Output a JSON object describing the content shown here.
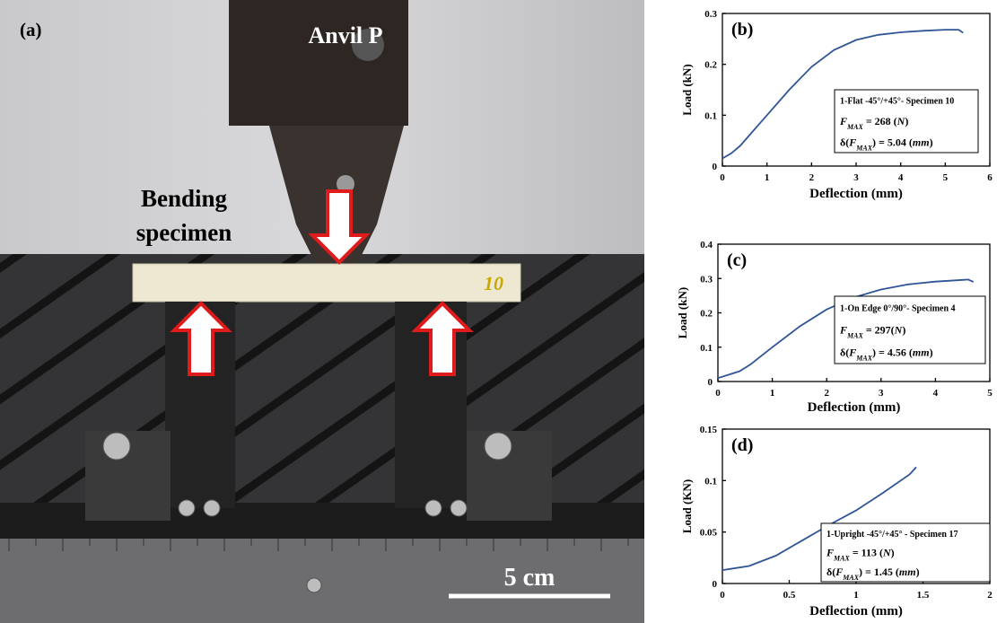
{
  "photo": {
    "panel_label": "(a)",
    "anvil_label": "Anvil P",
    "specimen_label": [
      "Bending",
      "specimen"
    ],
    "specimen_number": "10",
    "scale_bar": "5 cm"
  },
  "chart_data": [
    {
      "type": "line",
      "panel_label": "(b)",
      "x_label": "Deflection (mm)",
      "y_label": "Load (kN)",
      "color": "#2f5597",
      "x": [
        0,
        0.2,
        0.4,
        0.6,
        0.8,
        1,
        1.5,
        2,
        2.5,
        3,
        3.5,
        4,
        4.5,
        5,
        5.3,
        5.4
      ],
      "values": [
        0.015,
        0.025,
        0.04,
        0.06,
        0.08,
        0.1,
        0.15,
        0.195,
        0.228,
        0.248,
        0.258,
        0.263,
        0.266,
        0.268,
        0.268,
        0.262
      ],
      "xlim": [
        0,
        6
      ],
      "xticks": [
        0,
        1,
        2,
        3,
        4,
        5,
        6
      ],
      "ylim": [
        0,
        0.3
      ],
      "yticks": [
        0,
        0.1,
        0.2,
        0.3
      ],
      "annotation": [
        [
          {
            "t": "1-Flat -45°/+45°- Specimen 10"
          }
        ],
        [
          {
            "t": "F",
            "i": true
          },
          {
            "t": "MAX",
            "i": true,
            "sub": true
          },
          {
            "t": " = 268 ("
          },
          {
            "t": "N",
            "i": true
          },
          {
            "t": ")"
          }
        ],
        [
          {
            "t": "δ("
          },
          {
            "t": "F",
            "i": true
          },
          {
            "t": "MAX",
            "i": true,
            "sub": true
          },
          {
            "t": ") = 5.04 ("
          },
          {
            "t": "mm",
            "i": true
          },
          {
            "t": ")"
          }
        ]
      ]
    },
    {
      "type": "line",
      "panel_label": "(c)",
      "x_label": "Deflection (mm)",
      "y_label": "Load (kN)",
      "color": "#2f5597",
      "x": [
        0,
        0.2,
        0.4,
        0.6,
        0.8,
        1,
        1.5,
        2,
        2.5,
        3,
        3.5,
        4,
        4.5,
        4.6,
        4.7
      ],
      "values": [
        0.01,
        0.02,
        0.03,
        0.05,
        0.075,
        0.1,
        0.16,
        0.21,
        0.245,
        0.268,
        0.283,
        0.291,
        0.296,
        0.297,
        0.29
      ],
      "xlim": [
        0,
        5
      ],
      "xticks": [
        0,
        1,
        2,
        3,
        4,
        5
      ],
      "ylim": [
        0,
        0.4
      ],
      "yticks": [
        0,
        0.1,
        0.2,
        0.3,
        0.4
      ],
      "annotation": [
        [
          {
            "t": "1-On Edge 0°/90°- Specimen 4"
          }
        ],
        [
          {
            "t": "F",
            "i": true
          },
          {
            "t": "MAX",
            "i": true,
            "sub": true
          },
          {
            "t": " = 297("
          },
          {
            "t": "N",
            "i": true
          },
          {
            "t": ")"
          }
        ],
        [
          {
            "t": "δ("
          },
          {
            "t": "F",
            "i": true
          },
          {
            "t": "MAX",
            "i": true,
            "sub": true
          },
          {
            "t": ") = 4.56 ("
          },
          {
            "t": "mm",
            "i": true
          },
          {
            "t": ")"
          }
        ]
      ]
    },
    {
      "type": "line",
      "panel_label": "(d)",
      "x_label": "Deflection (mm)",
      "y_label": "Load (KN)",
      "color": "#2f5597",
      "x": [
        0,
        0.1,
        0.2,
        0.4,
        0.6,
        0.8,
        1,
        1.2,
        1.4,
        1.45
      ],
      "values": [
        0.013,
        0.015,
        0.017,
        0.027,
        0.042,
        0.057,
        0.071,
        0.088,
        0.106,
        0.113
      ],
      "xlim": [
        0,
        2
      ],
      "xticks": [
        0,
        0.5,
        1,
        1.5,
        2
      ],
      "ylim": [
        0,
        0.15
      ],
      "yticks": [
        0,
        0.05,
        0.1,
        0.15
      ],
      "annotation": [
        [
          {
            "t": "1-Upright -45°/+45° - Specimen 17"
          }
        ],
        [
          {
            "t": "F",
            "i": true
          },
          {
            "t": "MAX",
            "i": true,
            "sub": true
          },
          {
            "t": " = 113 ("
          },
          {
            "t": "N",
            "i": true
          },
          {
            "t": ")"
          }
        ],
        [
          {
            "t": "δ("
          },
          {
            "t": "F",
            "i": true
          },
          {
            "t": "MAX",
            "i": true,
            "sub": true
          },
          {
            "t": ") = 1.45 ("
          },
          {
            "t": "mm",
            "i": true
          },
          {
            "t": ")"
          }
        ]
      ]
    }
  ]
}
